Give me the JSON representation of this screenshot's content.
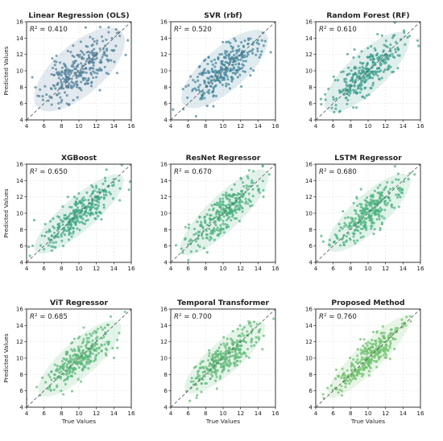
{
  "figure": {
    "xlabel": "True Values",
    "ylabel": "Predicted Values",
    "ticks": [
      "4",
      "6",
      "8",
      "10",
      "12",
      "14",
      "16"
    ]
  },
  "chart_data": [
    {
      "type": "scatter",
      "title": "Linear Regression (OLS)",
      "r2_label": "= 0.410",
      "r2": 0.41,
      "color": "#4f7f99",
      "xlim": [
        4,
        16
      ],
      "ylim": [
        4,
        16
      ],
      "grid": true,
      "reference_line": "y = x (dashed)",
      "points": {
        "n": 300,
        "x_center": 10,
        "x_sd": 2,
        "y_center": 10,
        "seed": 11
      }
    },
    {
      "type": "scatter",
      "title": "SVR (rbf)",
      "r2_label": "= 0.520",
      "r2": 0.52,
      "color": "#41849a",
      "xlim": [
        4,
        16
      ],
      "ylim": [
        4,
        16
      ],
      "grid": true,
      "reference_line": "y = x (dashed)",
      "points": {
        "n": 300,
        "x_center": 10,
        "x_sd": 2,
        "y_center": 10,
        "seed": 23
      }
    },
    {
      "type": "scatter",
      "title": "Random Forest (RF)",
      "r2_label": "= 0.610",
      "r2": 0.61,
      "color": "#3a9c8a",
      "xlim": [
        4,
        16
      ],
      "ylim": [
        4,
        16
      ],
      "grid": true,
      "reference_line": "y = x (dashed)",
      "points": {
        "n": 300,
        "x_center": 10,
        "x_sd": 2,
        "y_center": 10,
        "seed": 37
      }
    },
    {
      "type": "scatter",
      "title": "XGBoost",
      "r2_label": "= 0.650",
      "r2": 0.65,
      "color": "#3fa885",
      "xlim": [
        4,
        16
      ],
      "ylim": [
        4,
        16
      ],
      "grid": true,
      "reference_line": "y = x (dashed)",
      "points": {
        "n": 300,
        "x_center": 10,
        "x_sd": 2,
        "y_center": 10,
        "seed": 41
      }
    },
    {
      "type": "scatter",
      "title": "ResNet Regressor",
      "r2_label": "= 0.670",
      "r2": 0.67,
      "color": "#48b07c",
      "xlim": [
        4,
        16
      ],
      "ylim": [
        4,
        16
      ],
      "grid": true,
      "reference_line": "y = x (dashed)",
      "points": {
        "n": 300,
        "x_center": 10,
        "x_sd": 2,
        "y_center": 10,
        "seed": 53
      }
    },
    {
      "type": "scatter",
      "title": "LSTM Regressor",
      "r2_label": "= 0.680",
      "r2": 0.68,
      "color": "#4ab27e",
      "xlim": [
        4,
        16
      ],
      "ylim": [
        4,
        16
      ],
      "grid": true,
      "reference_line": "y = x (dashed)",
      "points": {
        "n": 300,
        "x_center": 10,
        "x_sd": 2,
        "y_center": 10,
        "seed": 67
      }
    },
    {
      "type": "scatter",
      "title": "ViT Regressor",
      "r2_label": "= 0.685",
      "r2": 0.685,
      "color": "#5ab879",
      "xlim": [
        4,
        16
      ],
      "ylim": [
        4,
        16
      ],
      "grid": true,
      "reference_line": "y = x (dashed)",
      "points": {
        "n": 300,
        "x_center": 10,
        "x_sd": 2,
        "y_center": 10,
        "seed": 71
      }
    },
    {
      "type": "scatter",
      "title": "Temporal Transformer",
      "r2_label": "= 0.700",
      "r2": 0.7,
      "color": "#5db874",
      "xlim": [
        4,
        16
      ],
      "ylim": [
        4,
        16
      ],
      "grid": true,
      "reference_line": "y = x (dashed)",
      "points": {
        "n": 300,
        "x_center": 10,
        "x_sd": 2,
        "y_center": 10,
        "seed": 83
      }
    },
    {
      "type": "scatter",
      "title": "Proposed Method",
      "r2_label": "= 0.760",
      "r2": 0.76,
      "color": "#6cbf6a",
      "xlim": [
        4,
        16
      ],
      "ylim": [
        4,
        16
      ],
      "grid": true,
      "reference_line": "y = x (dashed)",
      "points": {
        "n": 300,
        "x_center": 10,
        "x_sd": 2,
        "y_center": 10,
        "seed": 97
      }
    }
  ]
}
